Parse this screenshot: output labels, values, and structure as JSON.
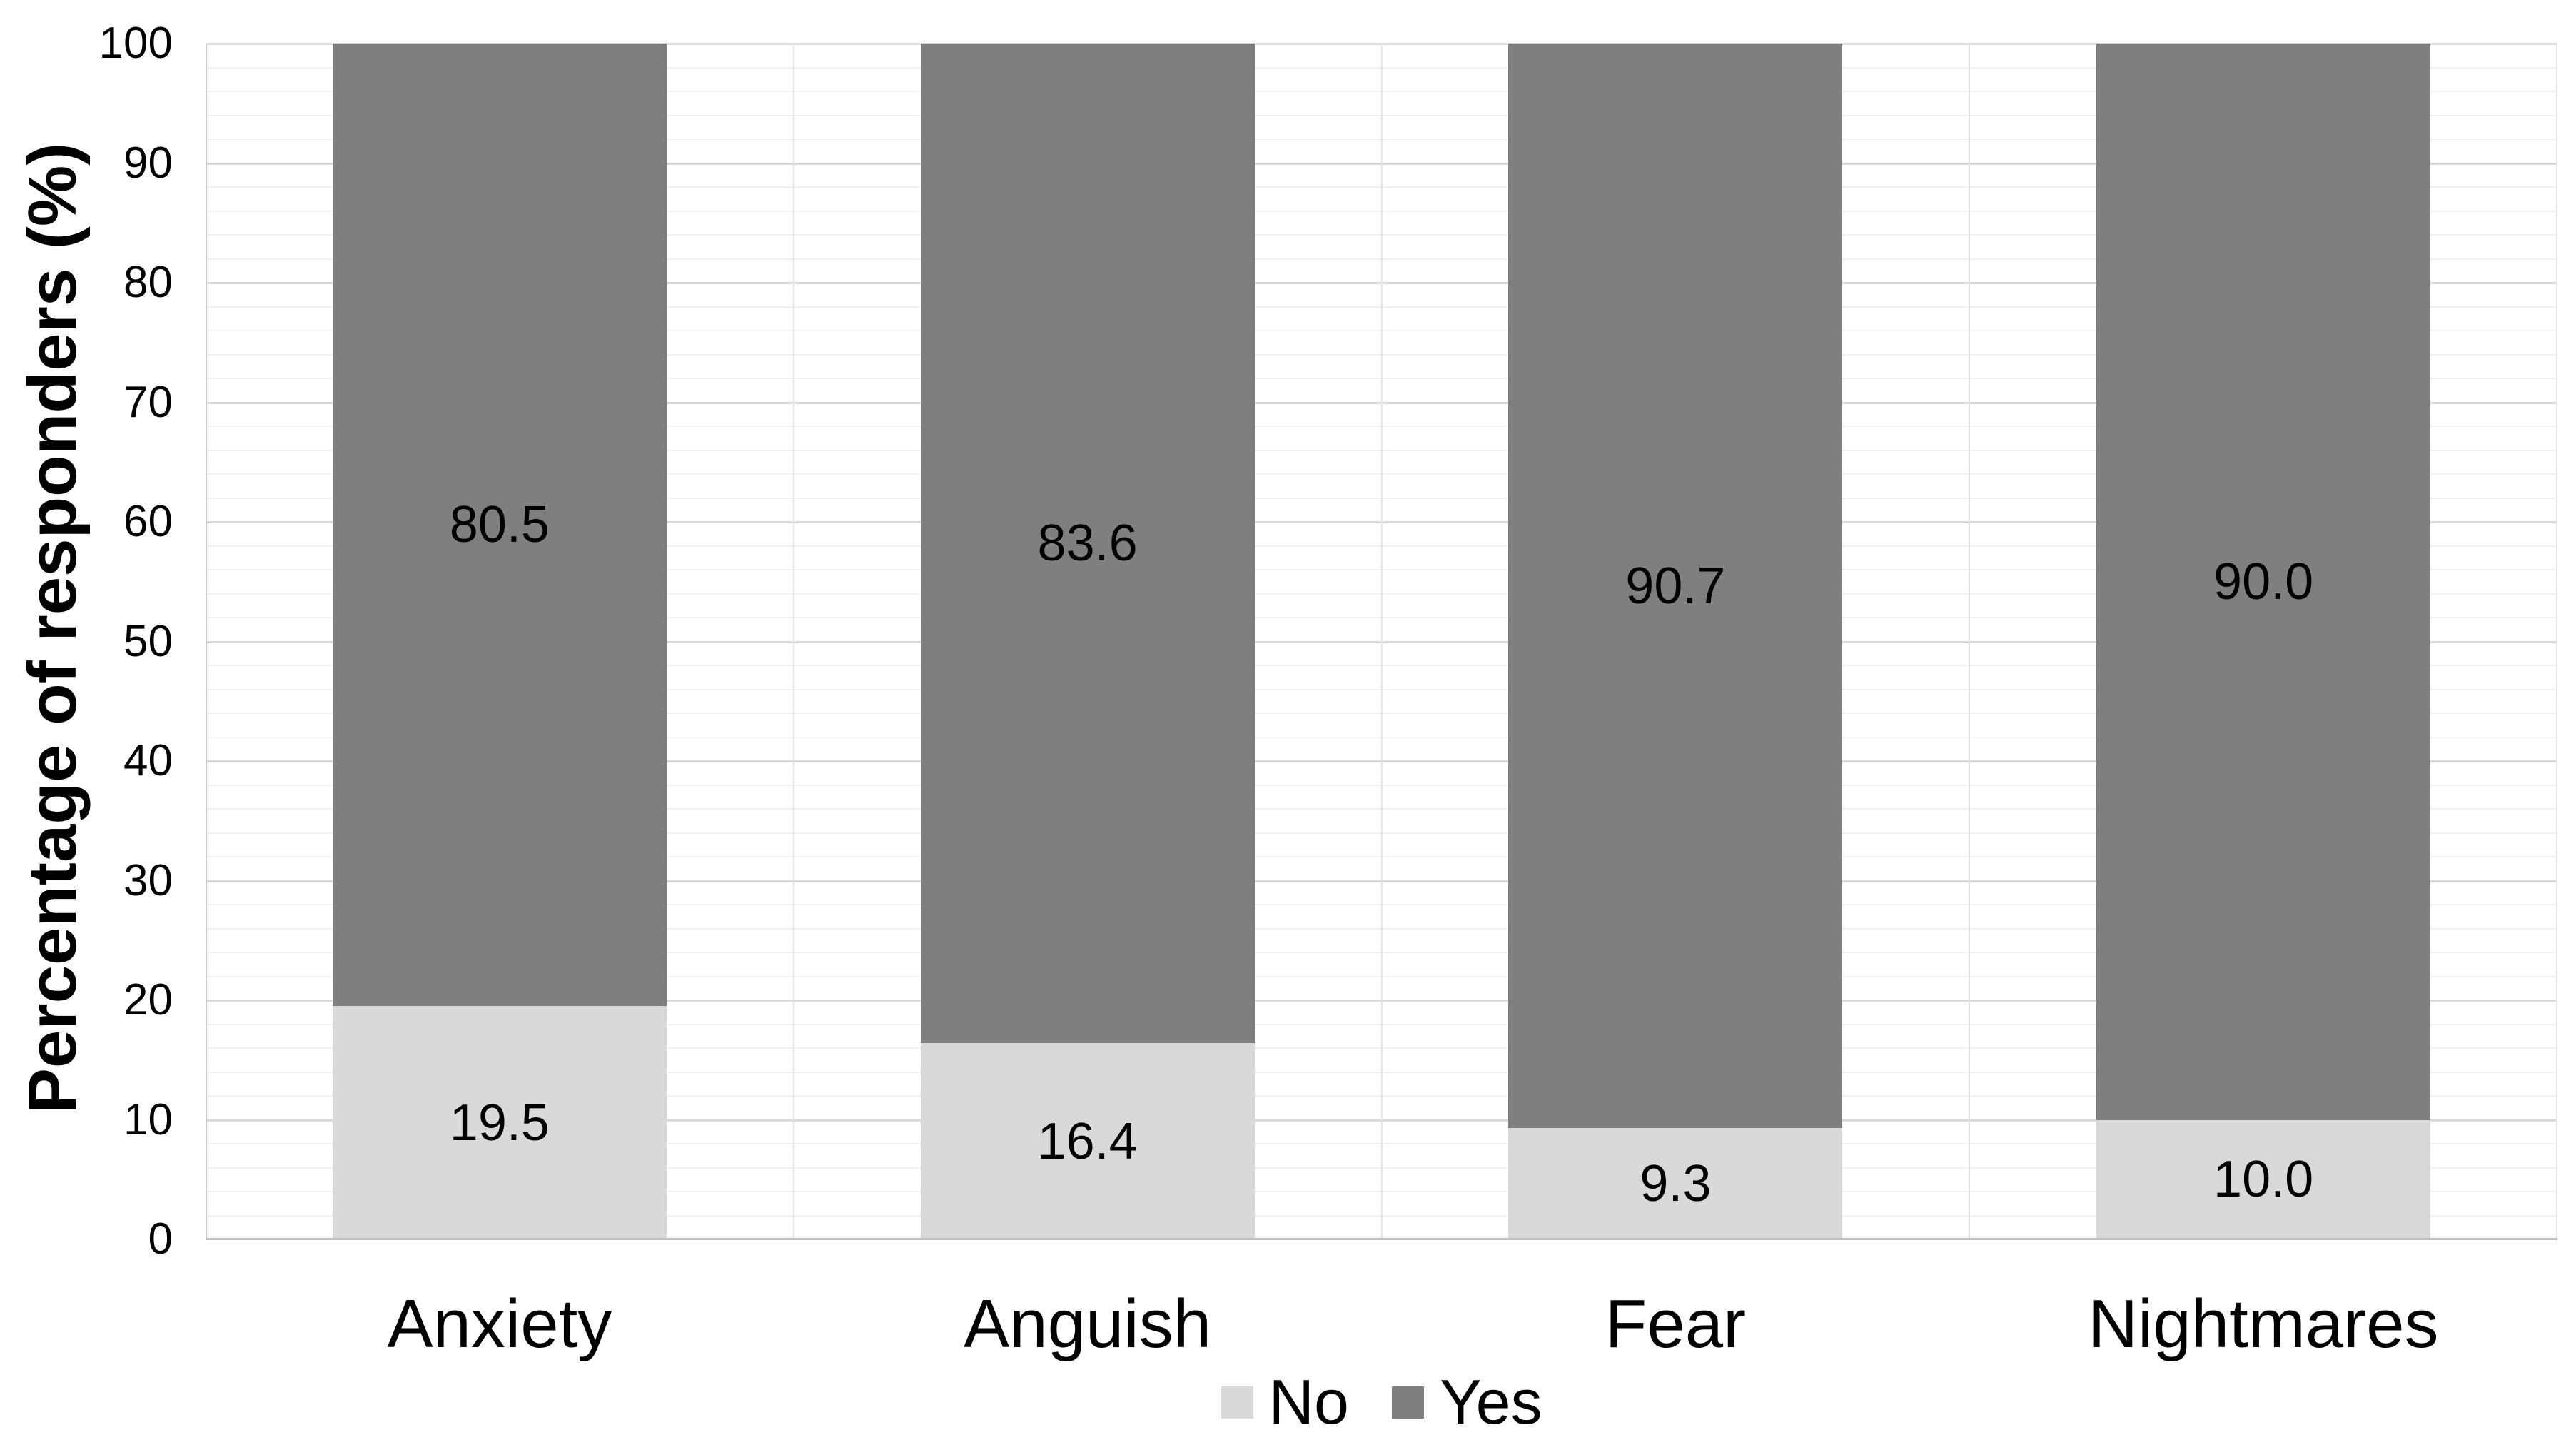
{
  "chart_data": {
    "type": "bar",
    "stacked": true,
    "title": "",
    "categories": [
      "Anxiety",
      "Anguish",
      "Fear",
      "Nightmares"
    ],
    "series": [
      {
        "name": "No",
        "values": [
          19.5,
          16.4,
          9.3,
          10.0
        ],
        "color": "#d9d9d9"
      },
      {
        "name": "Yes",
        "values": [
          80.5,
          83.6,
          90.7,
          90.0
        ],
        "color": "#7f7f7f"
      }
    ],
    "data_label_decimals": 1,
    "xlabel": "",
    "ylabel": "Percentage of responders (%)",
    "ylim": [
      0,
      100
    ],
    "yticks": [
      0,
      10,
      20,
      30,
      40,
      50,
      60,
      70,
      80,
      90,
      100
    ],
    "ytick_step": 10,
    "minor_gridline_step": 2,
    "grid": "horizontal major+minor, vertical lines at category boundaries",
    "legend_position": "bottom-center",
    "legend_entries": [
      "No",
      "Yes"
    ],
    "style": {
      "minor_gridline_color": "#f1f1f1",
      "major_gridline_color": "#d9d9d9",
      "category_boundary_line_color": "#e4e4e4",
      "axis_line_color": "#bfbfbf",
      "text_color": "#000000",
      "background_color": "#ffffff"
    }
  }
}
